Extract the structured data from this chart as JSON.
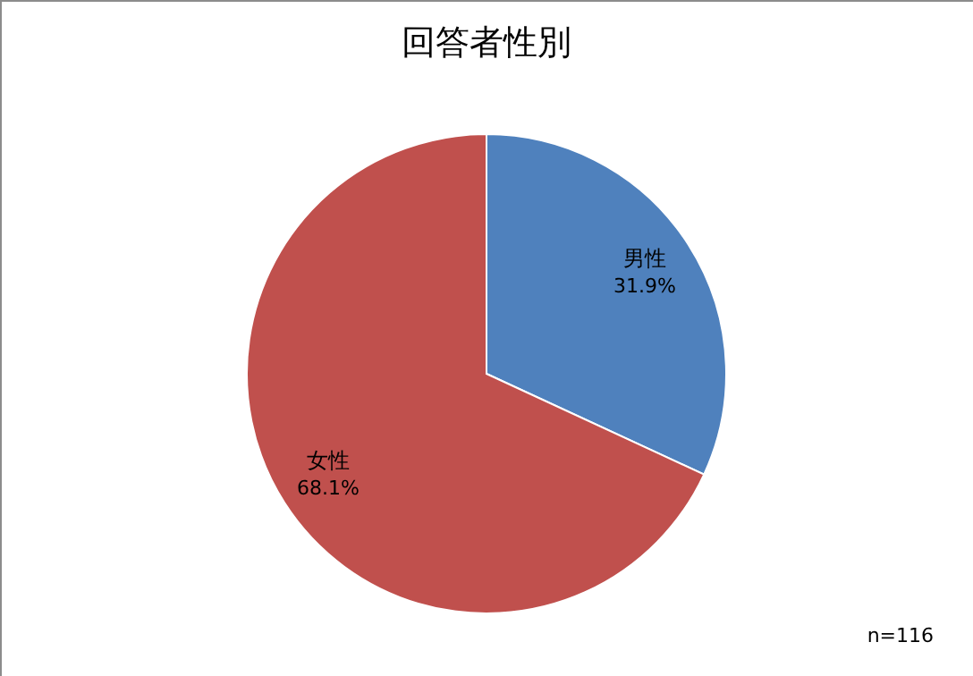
{
  "chart_data": {
    "type": "pie",
    "title": "回答者性別",
    "categories": [
      "男性",
      "女性"
    ],
    "values": [
      31.9,
      68.1
    ],
    "colors": [
      "#4f81bd",
      "#c0504d"
    ],
    "value_labels": [
      "31.9%",
      "68.1%"
    ],
    "annotations": [
      "n=116"
    ]
  }
}
